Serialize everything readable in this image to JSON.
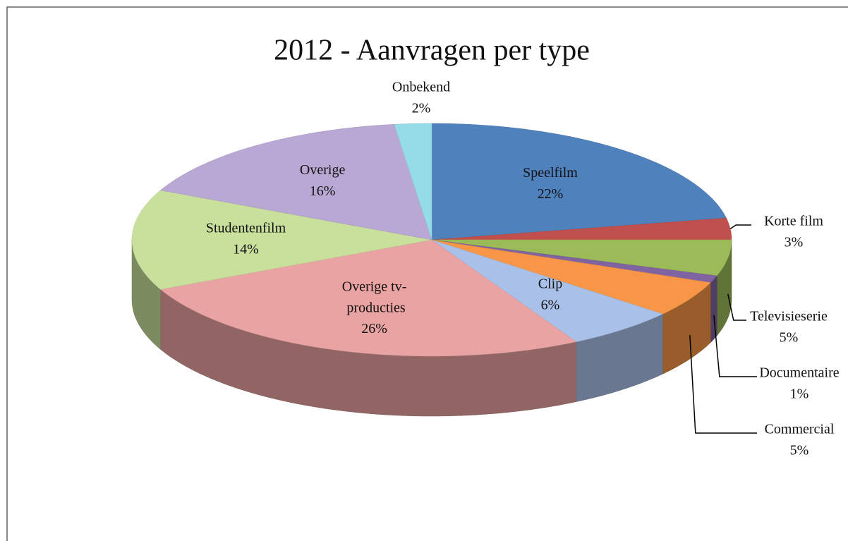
{
  "chart_data": {
    "type": "pie3d",
    "title": "2012 - Aanvragen per type",
    "categories": [
      "Speelfilm",
      "Korte film",
      "Televisieserie",
      "Documentaire",
      "Commercial",
      "Clip",
      "Overige tv-producties",
      "Studentenfilm",
      "Overige",
      "Onbekend"
    ],
    "values": [
      22,
      3,
      5,
      1,
      5,
      6,
      26,
      14,
      16,
      2
    ],
    "value_labels": [
      "22%",
      "3%",
      "5%",
      "1%",
      "5%",
      "6%",
      "26%",
      "14%",
      "16%",
      "2%"
    ],
    "colors": [
      "#4f81bd",
      "#c0504d",
      "#9bbb59",
      "#8064a2",
      "#f79646",
      "#a9c0e8",
      "#e8a3a2",
      "#c9e09c",
      "#b9a7d4",
      "#96dbe8"
    ]
  }
}
